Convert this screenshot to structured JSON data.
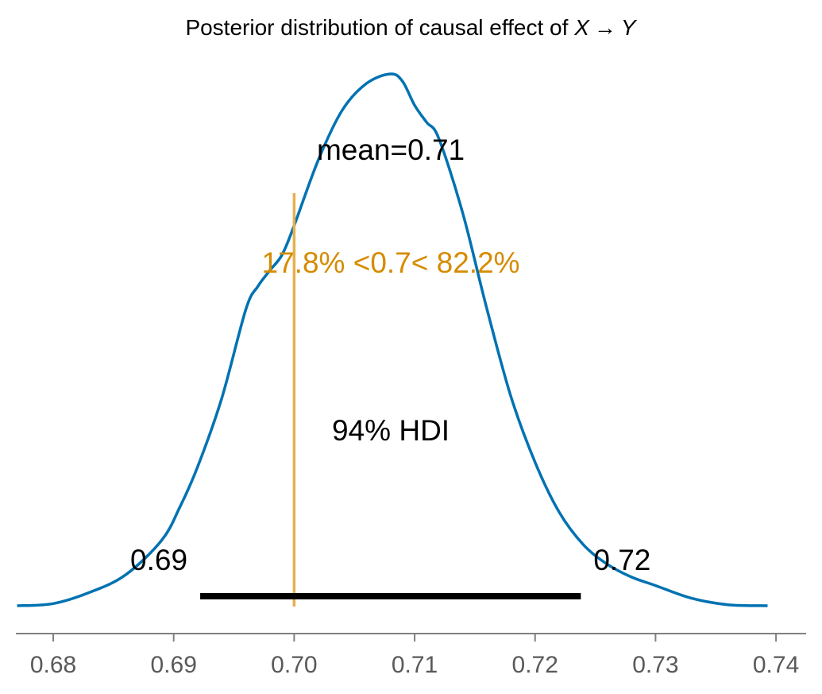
{
  "chart_data": {
    "type": "area",
    "title": {
      "prefix": "Posterior distribution of causal effect of ",
      "var_x": "X",
      "arrow": "→",
      "var_y": "Y"
    },
    "xlabel": "",
    "ylabel": "",
    "xlim": [
      0.6769,
      0.7425
    ],
    "x_ticks": [
      0.68,
      0.69,
      0.7,
      0.71,
      0.72,
      0.73,
      0.74
    ],
    "x_tick_labels": [
      "0.68",
      "0.69",
      "0.70",
      "0.71",
      "0.72",
      "0.73",
      "0.74"
    ],
    "y_axis_visible": false,
    "grid": false,
    "colors": {
      "density": "#0072b2",
      "reference": "#e6b050",
      "reference_text": "#d68b00",
      "hdi": "#000000",
      "axis": "#808080",
      "tick_text": "#595959"
    },
    "density": {
      "x": [
        0.677,
        0.68,
        0.683,
        0.686,
        0.689,
        0.6905,
        0.692,
        0.694,
        0.696,
        0.697,
        0.698,
        0.699,
        0.7,
        0.702,
        0.704,
        0.706,
        0.708,
        0.709,
        0.71,
        0.711,
        0.712,
        0.714,
        0.716,
        0.718,
        0.72,
        0.722,
        0.724,
        0.726,
        0.728,
        0.73,
        0.733,
        0.736,
        0.7393
      ],
      "y": [
        0.0,
        0.004,
        0.025,
        0.058,
        0.123,
        0.185,
        0.262,
        0.391,
        0.558,
        0.601,
        0.631,
        0.66,
        0.715,
        0.838,
        0.932,
        0.982,
        1.0,
        0.986,
        0.941,
        0.909,
        0.879,
        0.738,
        0.558,
        0.393,
        0.27,
        0.176,
        0.115,
        0.078,
        0.054,
        0.038,
        0.014,
        0.002,
        0.0
      ]
    },
    "mean": {
      "value": 0.71,
      "label": "mean=0.71"
    },
    "reference": {
      "value": 0.7,
      "label": "17.8% <0.7< 82.2%",
      "below_pct": 17.8,
      "above_pct": 82.2
    },
    "hdi": {
      "prob": 0.94,
      "label": "94% HDI",
      "lower": 0.6922,
      "upper": 0.7238,
      "lower_label": "0.69",
      "upper_label": "0.72"
    }
  }
}
